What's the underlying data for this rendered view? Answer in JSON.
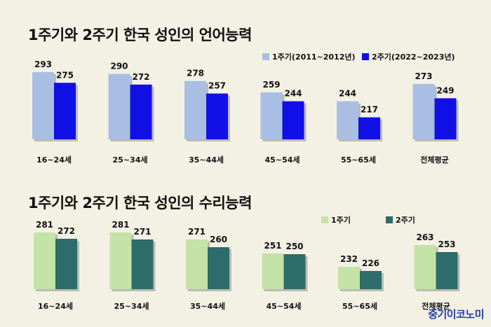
{
  "watermark": "중기이코노미",
  "colors": {
    "background": "#f3f0e4",
    "lang_r1": "#a8bfe3",
    "lang_r2": "#1010e6",
    "num_r1": "#c4e3a6",
    "num_r2": "#2e6b6b"
  },
  "chart_data": [
    {
      "type": "bar",
      "title": "1주기와 2주기 한국 성인의 언어능력",
      "categories": [
        "16~24세",
        "25~34세",
        "35~44세",
        "45~54세",
        "55~65세",
        "전체평균"
      ],
      "series": [
        {
          "name": "1주기(2011~2012년)",
          "values": [
            293,
            290,
            278,
            259,
            244,
            273
          ]
        },
        {
          "name": "2주기(2022~2023년)",
          "values": [
            275,
            272,
            257,
            244,
            217,
            249
          ]
        }
      ],
      "legend_position": "top-right",
      "grid": false
    },
    {
      "type": "bar",
      "title": "1주기와 2주기 한국 성인의 수리능력",
      "categories": [
        "16~24세",
        "25~34세",
        "35~44세",
        "45~54세",
        "55~65세",
        "전체평균"
      ],
      "series": [
        {
          "name": "1주기",
          "values": [
            281,
            281,
            271,
            251,
            232,
            263
          ]
        },
        {
          "name": "2주기",
          "values": [
            272,
            271,
            260,
            250,
            226,
            253
          ]
        }
      ],
      "legend_position": "top-right",
      "grid": false
    }
  ]
}
